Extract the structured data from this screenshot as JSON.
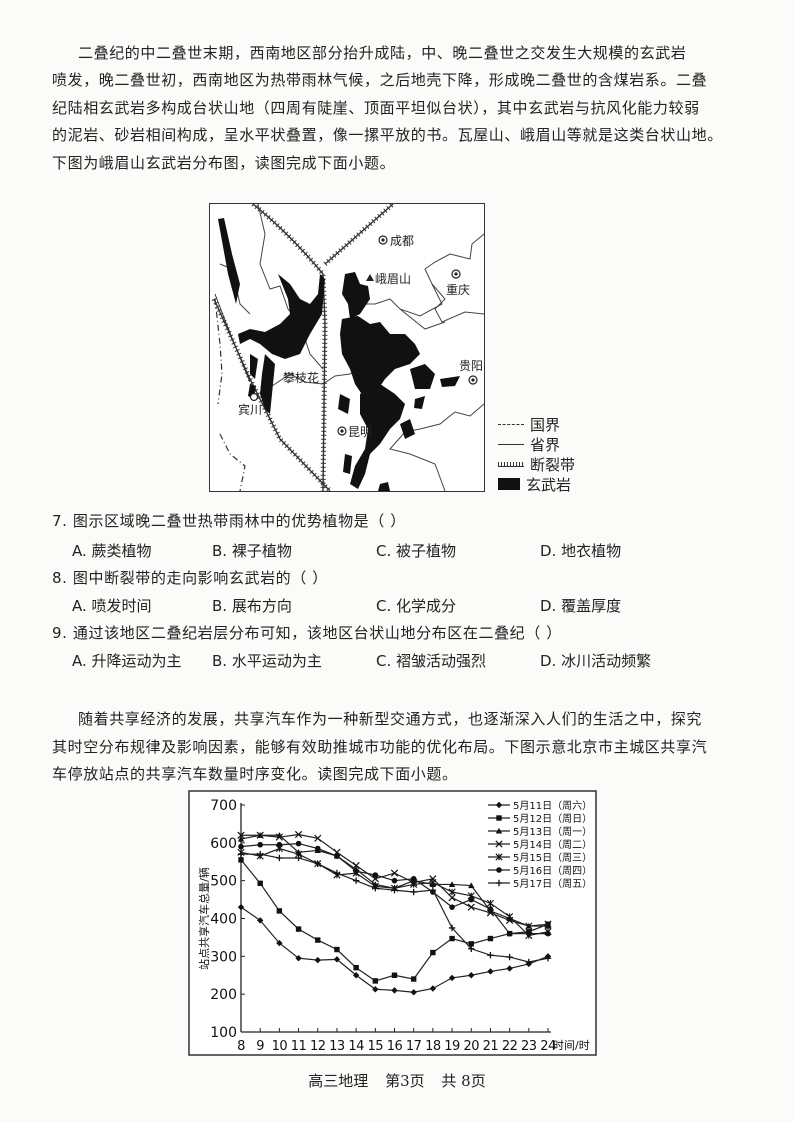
{
  "passage1": [
    "二叠纪的中二叠世末期，西南地区部分抬升成陆，中、晚二叠世之交发生大规模的玄武岩",
    "喷发，晚二叠世初，西南地区为热带雨林气候，之后地壳下降，形成晚二叠世的含煤岩系。二叠",
    "纪陆相玄武岩多构成台状山地（四周有陡崖、顶面平坦似台状），其中玄武岩与抗风化能力较弱",
    "的泥岩、砂岩相间构成，呈水平状叠置，像一摞平放的书。瓦屋山、峨眉山等就是这类台状山地。",
    "下图为峨眉山玄武岩分布图，读图完成下面小题。"
  ],
  "map": {
    "cities": [
      "成都",
      "重庆",
      "贵阳",
      "昆明",
      "攀枝花",
      "宾川"
    ],
    "mountain": "峨眉山",
    "legend": [
      "国界",
      "省界",
      "断裂带",
      "玄武岩"
    ]
  },
  "questions": [
    {
      "stem": "7. 图示区域晚二叠世热带雨林中的优势植物是（    ）",
      "options": [
        "A. 蕨类植物",
        "B. 裸子植物",
        "C. 被子植物",
        "D. 地衣植物"
      ]
    },
    {
      "stem": "8. 图中断裂带的走向影响玄武岩的（    ）",
      "options": [
        "A. 喷发时间",
        "B. 展布方向",
        "C. 化学成分",
        "D. 覆盖厚度"
      ]
    },
    {
      "stem": "9. 通过该地区二叠纪岩层分布可知，该地区台状山地分布区在二叠纪（    ）",
      "options": [
        "A. 升降运动为主",
        "B. 水平运动为主",
        "C. 褶皱活动强烈",
        "D. 冰川活动频繁"
      ]
    }
  ],
  "passage2": [
    "随着共享经济的发展，共享汽车作为一种新型交通方式，也逐渐深入人们的生活之中，探究",
    "其时空分布规律及影响因素，能够有效助推城市功能的优化布局。下图示意北京市主城区共享汽",
    "车停放站点的共享汽车数量时序变化。读图完成下面小题。"
  ],
  "chart_data": {
    "type": "line",
    "xlabel": "时间/时",
    "ylabel": "站点共享汽车总量/辆",
    "x": [
      8,
      9,
      10,
      11,
      12,
      13,
      14,
      15,
      16,
      17,
      18,
      19,
      20,
      21,
      22,
      23,
      24
    ],
    "xlim": [
      8,
      24
    ],
    "ylim": [
      100,
      700
    ],
    "yticks": [
      100,
      200,
      300,
      400,
      500,
      600,
      700
    ],
    "legend_position": "top-right",
    "grid": false,
    "series": [
      {
        "name": "5月11日（周六）",
        "marker": "diamond",
        "values": [
          430,
          395,
          335,
          295,
          290,
          292,
          250,
          213,
          210,
          205,
          215,
          243,
          250,
          260,
          268,
          280,
          300
        ]
      },
      {
        "name": "5月12日（周日）",
        "marker": "square",
        "values": [
          555,
          493,
          420,
          372,
          343,
          318,
          270,
          235,
          250,
          240,
          310,
          347,
          333,
          347,
          360,
          365,
          385
        ]
      },
      {
        "name": "5月13日（周一）",
        "marker": "triangle",
        "values": [
          610,
          620,
          620,
          575,
          580,
          565,
          530,
          490,
          480,
          500,
          490,
          490,
          487,
          420,
          400,
          380,
          380
        ]
      },
      {
        "name": "5月14日（周二）",
        "marker": "x",
        "values": [
          620,
          620,
          615,
          622,
          612,
          575,
          540,
          505,
          520,
          495,
          505,
          455,
          430,
          415,
          395,
          380,
          385
        ]
      },
      {
        "name": "5月15日（周三）",
        "marker": "asterisk",
        "values": [
          575,
          565,
          585,
          570,
          545,
          515,
          520,
          485,
          480,
          490,
          495,
          470,
          460,
          440,
          405,
          355,
          365
        ]
      },
      {
        "name": "5月16日（周四）",
        "marker": "circle",
        "values": [
          590,
          595,
          595,
          598,
          585,
          565,
          525,
          515,
          500,
          505,
          470,
          430,
          450,
          425,
          360,
          360,
          360
        ]
      },
      {
        "name": "5月17日（周五）",
        "marker": "plus",
        "values": [
          570,
          570,
          560,
          560,
          545,
          520,
          500,
          480,
          475,
          470,
          475,
          375,
          320,
          303,
          298,
          285,
          295
        ]
      }
    ]
  },
  "footer": {
    "subject": "高三地理",
    "page": "第3页",
    "total": "共 8页"
  }
}
